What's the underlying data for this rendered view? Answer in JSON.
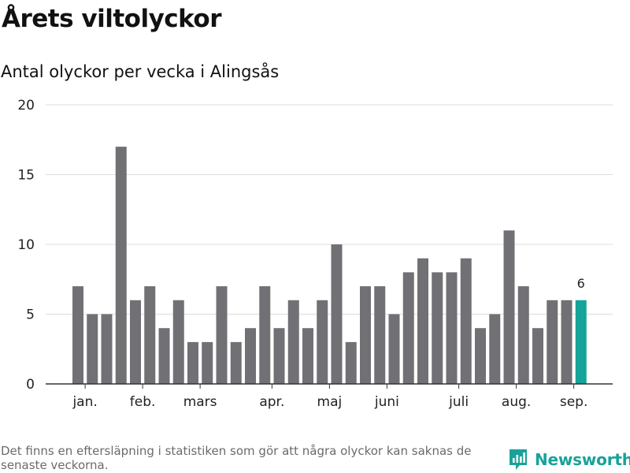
{
  "header": {
    "title": "Årets viltolyckor",
    "subtitle": "Antal olyckor per vecka i Alingsås"
  },
  "footer": {
    "note": "Det finns en eftersläpning i statistiken som gör att några olyckor kan saknas de senaste veckorna.",
    "brand": "Newsworthy"
  },
  "colors": {
    "bar": "#717075",
    "highlight": "#15a39a",
    "grid": "#dcdcdc",
    "axis": "#333333",
    "brand": "#19a29a"
  },
  "icons": {
    "brand_logo": "newsworthy-logo-icon"
  },
  "chart_data": {
    "type": "bar",
    "values": [
      7,
      5,
      5,
      17,
      6,
      7,
      4,
      6,
      3,
      3,
      7,
      3,
      4,
      7,
      4,
      6,
      4,
      6,
      10,
      3,
      7,
      7,
      5,
      8,
      9,
      8,
      8,
      9,
      4,
      5,
      11,
      7,
      4,
      6,
      6,
      6
    ],
    "highlight_last": true,
    "last_value_label": "6",
    "ylim": [
      0,
      20
    ],
    "yticks": [
      "0",
      "5",
      "10",
      "15",
      "20"
    ],
    "month_labels": [
      {
        "label": "jan.",
        "week": 0.5
      },
      {
        "label": "feb.",
        "week": 4.5
      },
      {
        "label": "mars",
        "week": 8.5
      },
      {
        "label": "apr.",
        "week": 13.5
      },
      {
        "label": "maj",
        "week": 17.5
      },
      {
        "label": "juni",
        "week": 21.5
      },
      {
        "label": "juli",
        "week": 26.5
      },
      {
        "label": "aug.",
        "week": 30.5
      },
      {
        "label": "sep.",
        "week": 34.5
      }
    ],
    "grid": true
  }
}
